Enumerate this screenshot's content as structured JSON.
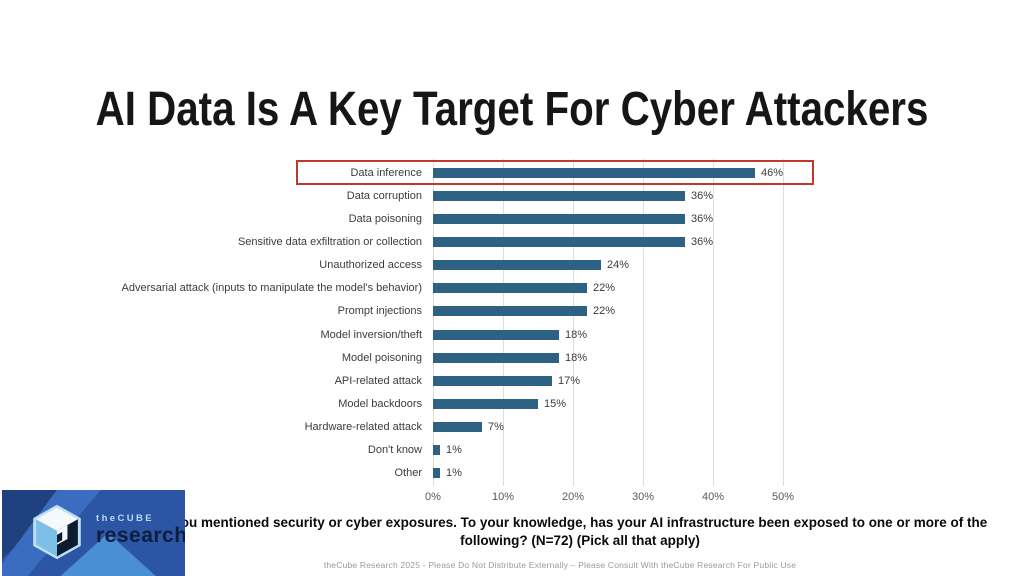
{
  "slide": {
    "title": "AI Data Is A Key Target For Cyber Attackers",
    "question": "You mentioned security or cyber exposures. To your knowledge, has your AI infrastructure been exposed to one or more of the following? (N=72) (Pick all that apply)",
    "footer": "theCube Research 2025 - Please Do Not Distribute Externally – Please Consult With theCube Research For Public Use"
  },
  "logo": {
    "brand_top": "theCUBE",
    "brand_bottom": "research"
  },
  "chart_data": {
    "type": "bar",
    "orientation": "horizontal",
    "title": "",
    "xlabel": "",
    "ylabel": "",
    "categories": [
      "Data inference",
      "Data corruption",
      "Data poisoning",
      "Sensitive data exfiltration or collection",
      "Unauthorized access",
      "Adversarial attack (inputs to manipulate the model's behavior)",
      "Prompt injections",
      "Model inversion/theft",
      "Model poisoning",
      "API-related attack",
      "Model backdoors",
      "Hardware-related attack",
      "Don't know",
      "Other"
    ],
    "values": [
      46,
      36,
      36,
      36,
      24,
      22,
      22,
      18,
      18,
      17,
      15,
      7,
      1,
      1
    ],
    "value_labels": [
      "46%",
      "36%",
      "36%",
      "36%",
      "24%",
      "22%",
      "22%",
      "18%",
      "18%",
      "17%",
      "15%",
      "7%",
      "1%",
      "1%"
    ],
    "x_ticks": [
      "0%",
      "10%",
      "20%",
      "30%",
      "40%",
      "50%"
    ],
    "xlim": [
      0,
      50
    ],
    "grid": true,
    "bar_color": "#2E6284",
    "highlight": {
      "category": "Data inference",
      "box_color": "#C0392B"
    }
  }
}
